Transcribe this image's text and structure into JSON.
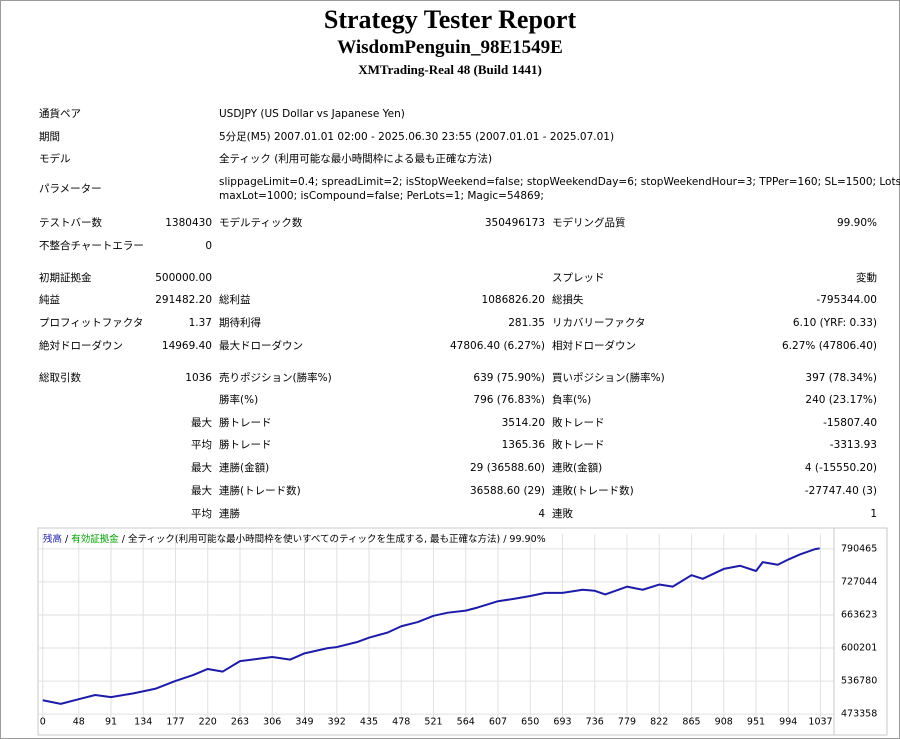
{
  "header": {
    "title": "Strategy Tester Report",
    "subtitle": "WisdomPenguin_98E1549E",
    "build": "XMTrading-Real 48 (Build 1441)"
  },
  "info": [
    [
      "通貨ペア",
      "USDJPY (US Dollar vs Japanese Yen)"
    ],
    [
      "期間",
      "5分足(M5) 2007.01.01 02:00 - 2025.06.30 23:55 (2007.01.01 - 2025.07.01)"
    ],
    [
      "モデル",
      "全ティック (利用可能な最小時間枠による最も正確な方法)"
    ],
    [
      "パラメーター",
      "slippageLimit=0.4; spreadLimit=2; isStopWeekend=false; stopWeekendDay=6; stopWeekendHour=3; TPPer=160; SL=1500; Lots=0.1;",
      "maxLot=1000; isCompound=false; PerLots=1; Magic=54869;"
    ]
  ],
  "stats": [
    [
      "テストバー数",
      "1380430",
      "モデルティック数",
      "350496173",
      "モデリング品質",
      "99.90%"
    ],
    [
      "不整合チャートエラー",
      "0",
      null,
      null,
      null,
      null
    ],
    [
      "初期証拠金",
      "500000.00",
      null,
      null,
      "スプレッド",
      "変動"
    ],
    [
      "純益",
      "291482.20",
      "総利益",
      "1086826.20",
      "総損失",
      "-795344.00"
    ],
    [
      "プロフィットファクタ",
      "1.37",
      "期待利得",
      "281.35",
      "リカバリーファクタ",
      "6.10 (YRF: 0.33)"
    ],
    [
      "絶対ドローダウン",
      "14969.40",
      "最大ドローダウン",
      "47806.40 (6.27%)",
      "相対ドローダウン",
      "6.27% (47806.40)"
    ],
    [
      "総取引数",
      "1036",
      "売りポジション(勝率%)",
      "639 (75.90%)",
      "買いポジション(勝率%)",
      "397 (78.34%)"
    ],
    [
      null,
      null,
      "勝率(%)",
      "796 (76.83%)",
      "負率(%)",
      "240 (23.17%)"
    ],
    [
      null,
      "最大",
      "勝トレード",
      "3514.20",
      "敗トレード",
      "-15807.40"
    ],
    [
      null,
      "平均",
      "勝トレード",
      "1365.36",
      "敗トレード",
      "-3313.93"
    ],
    [
      null,
      "最大",
      "連勝(金額)",
      "29 (36588.60)",
      "連敗(金額)",
      "4 (-15550.20)"
    ],
    [
      null,
      "最大",
      "連勝(トレード数)",
      "36588.60 (29)",
      "連敗(トレード数)",
      "-27747.40 (3)"
    ],
    [
      null,
      "平均",
      "連勝",
      "4",
      "連敗",
      "1"
    ]
  ],
  "chart_data": {
    "type": "line",
    "equity_label": "有効証拠金",
    "separator": "/",
    "model_label": "全ティック(利用可能な最小時間枠を使いすべてのティックを生成する, 最も正確な方法)",
    "quality_label": "99.90%",
    "x": [
      0,
      24,
      48,
      70,
      91,
      120,
      150,
      177,
      200,
      220,
      240,
      263,
      290,
      306,
      330,
      349,
      380,
      392,
      420,
      435,
      460,
      478,
      500,
      521,
      540,
      564,
      580,
      607,
      630,
      650,
      670,
      693,
      720,
      736,
      750,
      779,
      800,
      822,
      840,
      865,
      880,
      908,
      930,
      951,
      960,
      980,
      994,
      1010,
      1030,
      1036
    ],
    "series": [
      {
        "name": "残高",
        "color": "#1c1ca8",
        "values": [
          500000,
          493000,
          502000,
          510000,
          506000,
          513000,
          522000,
          537000,
          548000,
          560000,
          555000,
          575000,
          580000,
          583000,
          578000,
          590000,
          600000,
          602000,
          612000,
          620000,
          630000,
          642000,
          650000,
          662000,
          668000,
          672000,
          678000,
          690000,
          695000,
          700000,
          706000,
          706000,
          712000,
          710000,
          703000,
          718000,
          712000,
          722000,
          718000,
          740000,
          733000,
          752000,
          758000,
          748000,
          765000,
          760000,
          770000,
          780000,
          790000,
          791482
        ]
      }
    ],
    "xlim": [
      -5,
      1055
    ],
    "ylim": [
      464000,
      819000
    ],
    "xticks": [
      0,
      48,
      91,
      134,
      177,
      220,
      263,
      306,
      349,
      392,
      435,
      478,
      521,
      564,
      607,
      650,
      693,
      736,
      779,
      822,
      865,
      908,
      951,
      994,
      1037
    ],
    "yticks": [
      473358,
      536780,
      600201,
      663623,
      727044,
      790465
    ],
    "grid": true
  }
}
